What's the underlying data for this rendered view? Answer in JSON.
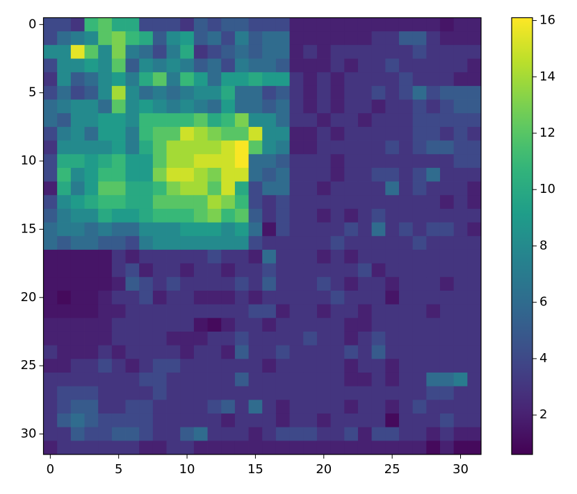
{
  "chart_data": {
    "type": "heatmap",
    "colormap": "viridis",
    "xlim": [
      -0.5,
      31.5
    ],
    "ylim": [
      31.5,
      -0.5
    ],
    "xticks": [
      0,
      5,
      10,
      15,
      20,
      25,
      30
    ],
    "yticks": [
      0,
      5,
      10,
      15,
      20,
      25,
      30
    ],
    "clim": [
      0.6,
      16.1
    ],
    "cticks": [
      2,
      4,
      6,
      8,
      10,
      12,
      14,
      16
    ],
    "values": [
      [
        4,
        4,
        3,
        11,
        12,
        10,
        10,
        4,
        4,
        4,
        3,
        5,
        4,
        5,
        5,
        4,
        4,
        4,
        2,
        2,
        2,
        2,
        2,
        2,
        2,
        2,
        2,
        2,
        2,
        1.5,
        2,
        2
      ],
      [
        4,
        6,
        7,
        8,
        12,
        13,
        11,
        10,
        5,
        8,
        9,
        5,
        6,
        4,
        7,
        5,
        6,
        6,
        2,
        2,
        2,
        2,
        2,
        2,
        3,
        3,
        5,
        5,
        3,
        2,
        2,
        2
      ],
      [
        8,
        8,
        15.5,
        12,
        8,
        13,
        7,
        6,
        4,
        7,
        10,
        3,
        4,
        5,
        6,
        5,
        6,
        6,
        2,
        3,
        2,
        3,
        3,
        3,
        3,
        3,
        3,
        4,
        3,
        3,
        3,
        3
      ],
      [
        4,
        8,
        8,
        9,
        8,
        12,
        5,
        8,
        7,
        8,
        7,
        5,
        6,
        4,
        7,
        6,
        6,
        5,
        2,
        2,
        2,
        3,
        2,
        3,
        3,
        4,
        3,
        3,
        3,
        3,
        3,
        2
      ],
      [
        3,
        8,
        5,
        6,
        8,
        9,
        7,
        10,
        12,
        7,
        11,
        9,
        6,
        9,
        9,
        10,
        9,
        9,
        3,
        2,
        3,
        2,
        3,
        3,
        3,
        3,
        4,
        3,
        3,
        3,
        2,
        2
      ],
      [
        4,
        6,
        4,
        5,
        8,
        14,
        8,
        6,
        7,
        6,
        7,
        8,
        8,
        10,
        6,
        6,
        4,
        5,
        3,
        2,
        3,
        2,
        3,
        3,
        4,
        3,
        4,
        6,
        4,
        5,
        5,
        5
      ],
      [
        6,
        7,
        8,
        8,
        6,
        12,
        8,
        9,
        8,
        7,
        8,
        7,
        6,
        9,
        6,
        6,
        5,
        6,
        3,
        2,
        3,
        2,
        3,
        3,
        2,
        3,
        3,
        4,
        3,
        4,
        5,
        5
      ],
      [
        6,
        5,
        8,
        8,
        9,
        9,
        8,
        11,
        11,
        11,
        11,
        12,
        10,
        11,
        13,
        8,
        8,
        6,
        3,
        3,
        2,
        3,
        3,
        2,
        3,
        3,
        3,
        4,
        4,
        4,
        4,
        4
      ],
      [
        4,
        7,
        8,
        6,
        9,
        9,
        7,
        11,
        12,
        12,
        15,
        14,
        13,
        12,
        12,
        15,
        8,
        8,
        2,
        2,
        3,
        2,
        3,
        3,
        3,
        3,
        3,
        4,
        4,
        3,
        4,
        3
      ],
      [
        3,
        8,
        8,
        8,
        8,
        9,
        7,
        10,
        12,
        14,
        14,
        14,
        14,
        15,
        16,
        12,
        8,
        7,
        2,
        2,
        3,
        3,
        3,
        3,
        3,
        4,
        3,
        4,
        5,
        5,
        4,
        4
      ],
      [
        4,
        10,
        10,
        9,
        10,
        11,
        9,
        9,
        12,
        14,
        14,
        15,
        15,
        15,
        16,
        6,
        6,
        5,
        3,
        3,
        3,
        2,
        3,
        3,
        3,
        3,
        3,
        3,
        3,
        3,
        4,
        4
      ],
      [
        4,
        11,
        8,
        9,
        11,
        11,
        9,
        9,
        13,
        15,
        15,
        14,
        13,
        15,
        15,
        6,
        5,
        6,
        3,
        3,
        3,
        2,
        3,
        3,
        4,
        4,
        3,
        4,
        6,
        3,
        3,
        3
      ],
      [
        2,
        10,
        7,
        9,
        12,
        12,
        10,
        10,
        11,
        13,
        14,
        14,
        12,
        15,
        10,
        4,
        6,
        6,
        3,
        3,
        2,
        3,
        3,
        3,
        3,
        6,
        3,
        4,
        3,
        3,
        3,
        2
      ],
      [
        4,
        8,
        9,
        10,
        11,
        11,
        10,
        10,
        12,
        12,
        12,
        12,
        14,
        13,
        11,
        4,
        3,
        4,
        3,
        3,
        3,
        3,
        3,
        3,
        3,
        3,
        3,
        3,
        3,
        2,
        3,
        2
      ],
      [
        5,
        7,
        8,
        8,
        10,
        9,
        9,
        10,
        11,
        11,
        11,
        12,
        13,
        11,
        12,
        5,
        3,
        4,
        3,
        3,
        2,
        3,
        2,
        3,
        4,
        3,
        3,
        3,
        3,
        3,
        3,
        3
      ],
      [
        6,
        7,
        7,
        6,
        7,
        6,
        6,
        8,
        8,
        8,
        9,
        9,
        9,
        8,
        9,
        6,
        1.5,
        4,
        3,
        3,
        3,
        3,
        4,
        3,
        6,
        3,
        4,
        3,
        4,
        4,
        3,
        2
      ],
      [
        6,
        5,
        6,
        6,
        5,
        5,
        4,
        7,
        8,
        8,
        8,
        8,
        8,
        8,
        8,
        4,
        3,
        3,
        3,
        3,
        3,
        4,
        3,
        3,
        3,
        3,
        3,
        4,
        3,
        3,
        3,
        3
      ],
      [
        1.5,
        1.5,
        1.5,
        1.5,
        1.5,
        3,
        2,
        3,
        3,
        3,
        3,
        3,
        4,
        3,
        3,
        2,
        6,
        3,
        3,
        3,
        2,
        3,
        2,
        3,
        3,
        3,
        3,
        3,
        3,
        3,
        3,
        3
      ],
      [
        1.5,
        1.5,
        1.5,
        1.5,
        1.5,
        3,
        4,
        2,
        3,
        3,
        2,
        3,
        3,
        2,
        3,
        3,
        4,
        3,
        3,
        3,
        3,
        3,
        3,
        4,
        2,
        3,
        3,
        3,
        3,
        3,
        3,
        3
      ],
      [
        1.5,
        1.5,
        1.5,
        1.5,
        1.5,
        2,
        5,
        4,
        3,
        4,
        3,
        3,
        3,
        3,
        4,
        3,
        5,
        3,
        3,
        3,
        4,
        3,
        2,
        3,
        3,
        2,
        3,
        3,
        3,
        2,
        3,
        3
      ],
      [
        1.5,
        1,
        1.5,
        1.5,
        2,
        3,
        3,
        4,
        2,
        3,
        3,
        2,
        2,
        2,
        3,
        2,
        3,
        3,
        3,
        3,
        3,
        4,
        3,
        3,
        3,
        1.5,
        3,
        3,
        3,
        3,
        3,
        3
      ],
      [
        1.5,
        1.5,
        1.5,
        1.5,
        2,
        2,
        3,
        3,
        3,
        3,
        3,
        3,
        3,
        3,
        3,
        4,
        4,
        2,
        3,
        3,
        2,
        3,
        3,
        2,
        3,
        3,
        3,
        3,
        2,
        3,
        3,
        3
      ],
      [
        2,
        2,
        2,
        2,
        2,
        3,
        3,
        3,
        3,
        3,
        3,
        1.5,
        1,
        2,
        3,
        3,
        2,
        3,
        3,
        3,
        3,
        3,
        2,
        2,
        3,
        3,
        3,
        3,
        3,
        3,
        3,
        3
      ],
      [
        2,
        2,
        2,
        2,
        2,
        3,
        3,
        3,
        3,
        2,
        2,
        2,
        3,
        3,
        4,
        3,
        3,
        3,
        3,
        4,
        3,
        3,
        2,
        3,
        4,
        3,
        3,
        3,
        3,
        3,
        3,
        3
      ],
      [
        3,
        2,
        2,
        2,
        3,
        2,
        3,
        3,
        3,
        3,
        2,
        3,
        3,
        2,
        5,
        3,
        3,
        4,
        3,
        3,
        3,
        3,
        4,
        3,
        5,
        3,
        3,
        3,
        3,
        3,
        3,
        3
      ],
      [
        2,
        2,
        3,
        3,
        4,
        3,
        2,
        3,
        4,
        4,
        3,
        3,
        3,
        3,
        3,
        3,
        2,
        3,
        3,
        3,
        3,
        3,
        2,
        3,
        3,
        2,
        3,
        3,
        3,
        3,
        3,
        3
      ],
      [
        3,
        3,
        3,
        3,
        3,
        3,
        3,
        4,
        4,
        3,
        3,
        3,
        3,
        3,
        5,
        3,
        3,
        3,
        3,
        3,
        3,
        3,
        2,
        2,
        3,
        2,
        3,
        3,
        6,
        6,
        7,
        3
      ],
      [
        3,
        4,
        4,
        4,
        3,
        3,
        3,
        3,
        4,
        3,
        3,
        3,
        3,
        3,
        3,
        3,
        3,
        3,
        3,
        3,
        3,
        3,
        3,
        3,
        3,
        3,
        3,
        3,
        4,
        4,
        3,
        3
      ],
      [
        3,
        4,
        5,
        5,
        3,
        3,
        4,
        4,
        3,
        3,
        3,
        3,
        4,
        5,
        3,
        6,
        3,
        2,
        3,
        3,
        3,
        3,
        2,
        3,
        3,
        2,
        3,
        4,
        3,
        3,
        3,
        3
      ],
      [
        3,
        5,
        6,
        5,
        4,
        4,
        4,
        4,
        3,
        3,
        3,
        3,
        3,
        2,
        3,
        3,
        3,
        2,
        3,
        3,
        2,
        3,
        3,
        3,
        3,
        1,
        3,
        3,
        3,
        4,
        3,
        3
      ],
      [
        3,
        3,
        5,
        4,
        4,
        5,
        5,
        4,
        3,
        3,
        5,
        6,
        3,
        3,
        3,
        2,
        3,
        4,
        4,
        4,
        3,
        3,
        4,
        2,
        4,
        4,
        3,
        3,
        2,
        3,
        2,
        2
      ],
      [
        2,
        3,
        3,
        3,
        3,
        3,
        3,
        2,
        2,
        3,
        3,
        2,
        2,
        2,
        2,
        2,
        2,
        2,
        2,
        2,
        2,
        2,
        2,
        2,
        2,
        2,
        2,
        2,
        1,
        2,
        1,
        1
      ]
    ]
  }
}
